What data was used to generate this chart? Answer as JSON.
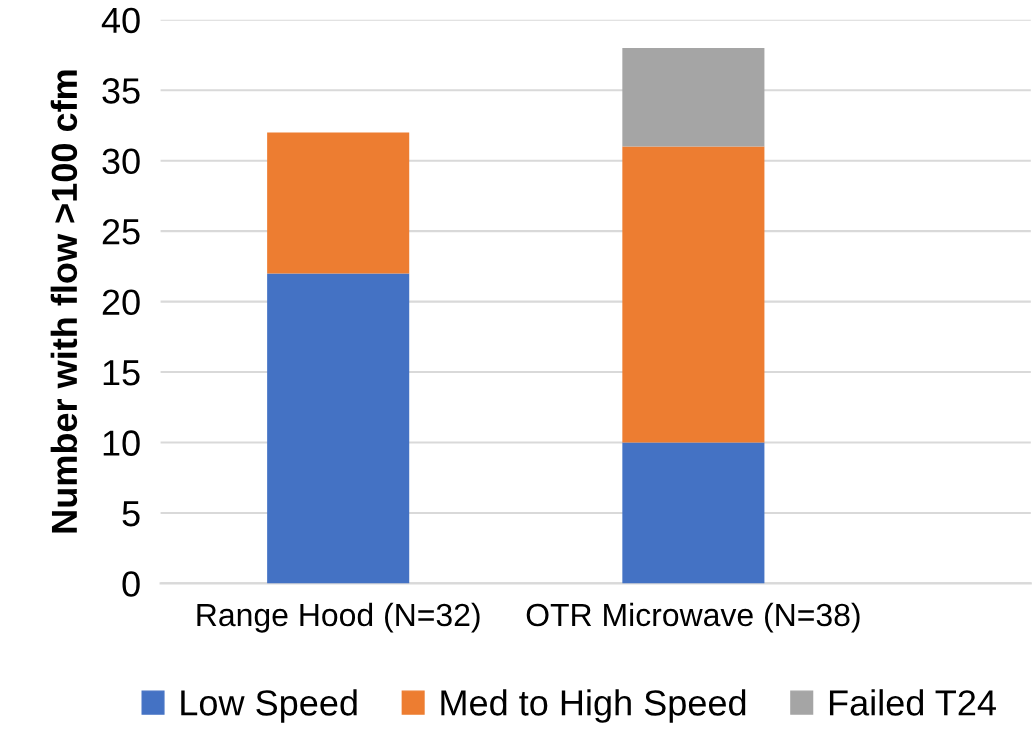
{
  "chart_data": {
    "type": "bar",
    "stacked": true,
    "ylabel": "Number with flow >100 cfm",
    "categories": [
      "Range Hood (N=32)",
      "OTR Microwave (N=38)"
    ],
    "series": [
      {
        "name": "Low Speed",
        "color": "#4472c4",
        "values": [
          22,
          10
        ]
      },
      {
        "name": "Med to High Speed",
        "color": "#ed7d31",
        "values": [
          10,
          21
        ]
      },
      {
        "name": "Failed T24",
        "color": "#a5a5a5",
        "values": [
          null,
          7
        ]
      }
    ],
    "ylim": [
      0,
      40
    ],
    "yticks": [
      0,
      5,
      10,
      15,
      20,
      25,
      30,
      35,
      40
    ],
    "grid": "y",
    "legend": "bottom"
  }
}
